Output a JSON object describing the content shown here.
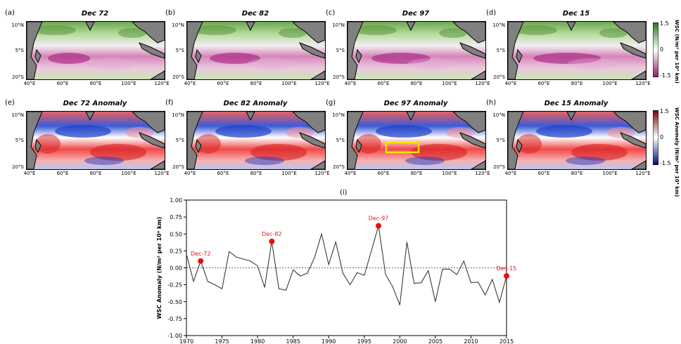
{
  "map_panels": [
    {
      "tag": "(a)",
      "title": "Dec 72",
      "kind": "climatology"
    },
    {
      "tag": "(b)",
      "title": "Dec 82",
      "kind": "climatology"
    },
    {
      "tag": "(c)",
      "title": "Dec 97",
      "kind": "climatology"
    },
    {
      "tag": "(d)",
      "title": "Dec 15",
      "kind": "climatology"
    },
    {
      "tag": "(e)",
      "title": "Dec 72 Anomaly",
      "kind": "anomaly"
    },
    {
      "tag": "(f)",
      "title": "Dec 82 Anomaly",
      "kind": "anomaly"
    },
    {
      "tag": "(g)",
      "title": "Dec 97 Anomaly",
      "kind": "anomaly"
    },
    {
      "tag": "(h)",
      "title": "Dec 15 Anomaly",
      "kind": "anomaly"
    }
  ],
  "map_axes": {
    "lat_ticks": [
      "10°N",
      "5°S",
      "20°S"
    ],
    "lon_ticks": [
      "40°E",
      "60°E",
      "80°E",
      "100°E",
      "120°E"
    ]
  },
  "colorbars": [
    {
      "title": "WSC (N/m² per 10⁴ km)",
      "ticks": [
        "1.5",
        "0",
        "-1.5"
      ],
      "colors": [
        "#2d6e1e",
        "#ffffff",
        "#8b1a6e"
      ]
    },
    {
      "title": "WSC Anomaly (N/m² per 10⁴ km)",
      "ticks": [
        "1.5",
        "0",
        "-1.5"
      ],
      "colors": [
        "#7a0000",
        "#ffffff",
        "#000a6e"
      ]
    }
  ],
  "colors": {
    "land": "#808080",
    "series_line": "#3a3a3a",
    "highlight": "#e81010",
    "box": "#f2e600"
  },
  "chart_data": {
    "type": "line",
    "panel_tag": "(i)",
    "ylabel": "WSC Anomaly (N/m² per 10⁴ km)",
    "xlim": [
      1970,
      2015
    ],
    "ylim": [
      -1.0,
      1.0
    ],
    "xticks": [
      1970,
      1975,
      1980,
      1985,
      1990,
      1995,
      2000,
      2005,
      2010,
      2015
    ],
    "yticks": [
      "1.00",
      "0.75",
      "0.50",
      "0.25",
      "0.00",
      "-0.25",
      "-0.50",
      "-0.75",
      "-1.00"
    ],
    "grid": false,
    "zero_line": true,
    "x": [
      1970,
      1971,
      1972,
      1973,
      1974,
      1975,
      1976,
      1977,
      1978,
      1979,
      1980,
      1981,
      1982,
      1983,
      1984,
      1985,
      1986,
      1987,
      1988,
      1989,
      1990,
      1991,
      1992,
      1993,
      1994,
      1995,
      1996,
      1997,
      1998,
      1999,
      2000,
      2001,
      2002,
      2003,
      2004,
      2005,
      2006,
      2007,
      2008,
      2009,
      2010,
      2011,
      2012,
      2013,
      2014,
      2015
    ],
    "values": [
      0.2,
      -0.2,
      0.1,
      -0.2,
      -0.25,
      -0.31,
      0.24,
      0.16,
      0.13,
      0.1,
      0.03,
      -0.29,
      0.39,
      -0.31,
      -0.33,
      -0.03,
      -0.12,
      -0.08,
      0.15,
      0.5,
      0.05,
      0.38,
      -0.08,
      -0.25,
      -0.07,
      -0.11,
      0.25,
      0.62,
      -0.1,
      -0.28,
      -0.55,
      0.38,
      -0.23,
      -0.22,
      -0.04,
      -0.5,
      -0.02,
      -0.02,
      -0.1,
      0.1,
      -0.22,
      -0.21,
      -0.4,
      -0.17,
      -0.51,
      -0.12
    ],
    "highlights": [
      {
        "label": "Dec-72",
        "x": 1972,
        "y": 0.1
      },
      {
        "label": "Dec-82",
        "x": 1982,
        "y": 0.39
      },
      {
        "label": "Dec-97",
        "x": 1997,
        "y": 0.62
      },
      {
        "label": "Dec-15",
        "x": 2015,
        "y": -0.12
      }
    ]
  }
}
